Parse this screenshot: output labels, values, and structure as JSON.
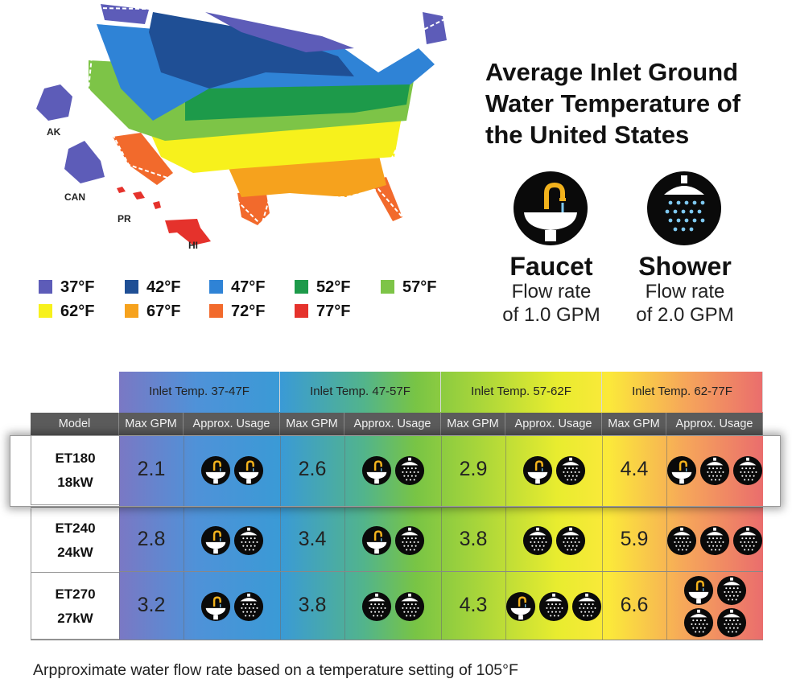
{
  "title": "Average Inlet Ground Water Temperature of the United States",
  "map_labels": {
    "ak": "AK",
    "can": "CAN",
    "pr": "PR",
    "hi": "HI"
  },
  "fixtures": [
    {
      "name": "Faucet",
      "line1": "Flow rate",
      "line2": "of 1.0 GPM",
      "icon": "faucet-icon"
    },
    {
      "name": "Shower",
      "line1": "Flow rate",
      "line2": "of 2.0 GPM",
      "icon": "shower-icon"
    }
  ],
  "legend": [
    {
      "label": "37°F",
      "color": "#5d5cb8"
    },
    {
      "label": "42°F",
      "color": "#1f4f95"
    },
    {
      "label": "47°F",
      "color": "#2f83d6"
    },
    {
      "label": "52°F",
      "color": "#1d9a4a"
    },
    {
      "label": "57°F",
      "color": "#7dc447"
    },
    {
      "label": "62°F",
      "color": "#f7f11c"
    },
    {
      "label": "67°F",
      "color": "#f6a21d"
    },
    {
      "label": "72°F",
      "color": "#f26a2c"
    },
    {
      "label": "77°F",
      "color": "#e5322c"
    }
  ],
  "table": {
    "model_header": "Model",
    "ranges": [
      "Inlet Temp. 37-47F",
      "Inlet Temp. 47-57F",
      "Inlet Temp. 57-62F",
      "Inlet Temp. 62-77F"
    ],
    "col_headers": [
      "Max GPM",
      "Approx. Usage"
    ],
    "rows": [
      {
        "model": "ET180",
        "power": "18kW",
        "gpm": [
          "2.1",
          "2.6",
          "2.9",
          "4.4"
        ],
        "usage": [
          [
            "faucet",
            "faucet"
          ],
          [
            "faucet",
            "shower"
          ],
          [
            "faucet",
            "shower"
          ],
          [
            "faucet",
            "shower",
            "shower"
          ]
        ]
      },
      {
        "model": "ET240",
        "power": "24kW",
        "gpm": [
          "2.8",
          "3.4",
          "3.8",
          "5.9"
        ],
        "usage": [
          [
            "faucet",
            "shower"
          ],
          [
            "faucet",
            "shower"
          ],
          [
            "shower",
            "shower"
          ],
          [
            "shower",
            "shower",
            "shower"
          ]
        ]
      },
      {
        "model": "ET270",
        "power": "27kW",
        "gpm": [
          "3.2",
          "3.8",
          "4.3",
          "6.6"
        ],
        "usage": [
          [
            "faucet",
            "shower"
          ],
          [
            "shower",
            "shower"
          ],
          [
            "faucet",
            "shower",
            "shower"
          ],
          [
            "faucet",
            "shower",
            "shower",
            "shower"
          ]
        ]
      }
    ]
  },
  "footnote": "Arpproximate water flow rate based on a temperature setting of 105°F"
}
